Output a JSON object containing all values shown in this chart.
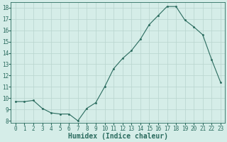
{
  "x": [
    0,
    1,
    2,
    3,
    4,
    5,
    6,
    7,
    8,
    9,
    10,
    11,
    12,
    13,
    14,
    15,
    16,
    17,
    18,
    19,
    20,
    21,
    22,
    23
  ],
  "y": [
    9.7,
    9.7,
    9.8,
    9.1,
    8.7,
    8.6,
    8.6,
    8.0,
    9.1,
    9.6,
    11.0,
    12.6,
    13.5,
    14.2,
    15.2,
    16.5,
    17.3,
    18.1,
    18.1,
    16.9,
    16.3,
    15.6,
    13.4,
    11.4
  ],
  "line_color": "#2A6B5E",
  "marker": ".",
  "marker_size": 3.0,
  "bg_color": "#D5EDE8",
  "grid_color": "#B8D4CE",
  "xlabel": "Humidex (Indice chaleur)",
  "xlim": [
    -0.5,
    23.5
  ],
  "ylim": [
    7.8,
    18.5
  ],
  "yticks": [
    8,
    9,
    10,
    11,
    12,
    13,
    14,
    15,
    16,
    17,
    18
  ],
  "xticks": [
    0,
    1,
    2,
    3,
    4,
    5,
    6,
    7,
    8,
    9,
    10,
    11,
    12,
    13,
    14,
    15,
    16,
    17,
    18,
    19,
    20,
    21,
    22,
    23
  ],
  "tick_label_fontsize": 5.5,
  "xlabel_fontsize": 7.0,
  "linewidth": 0.8
}
